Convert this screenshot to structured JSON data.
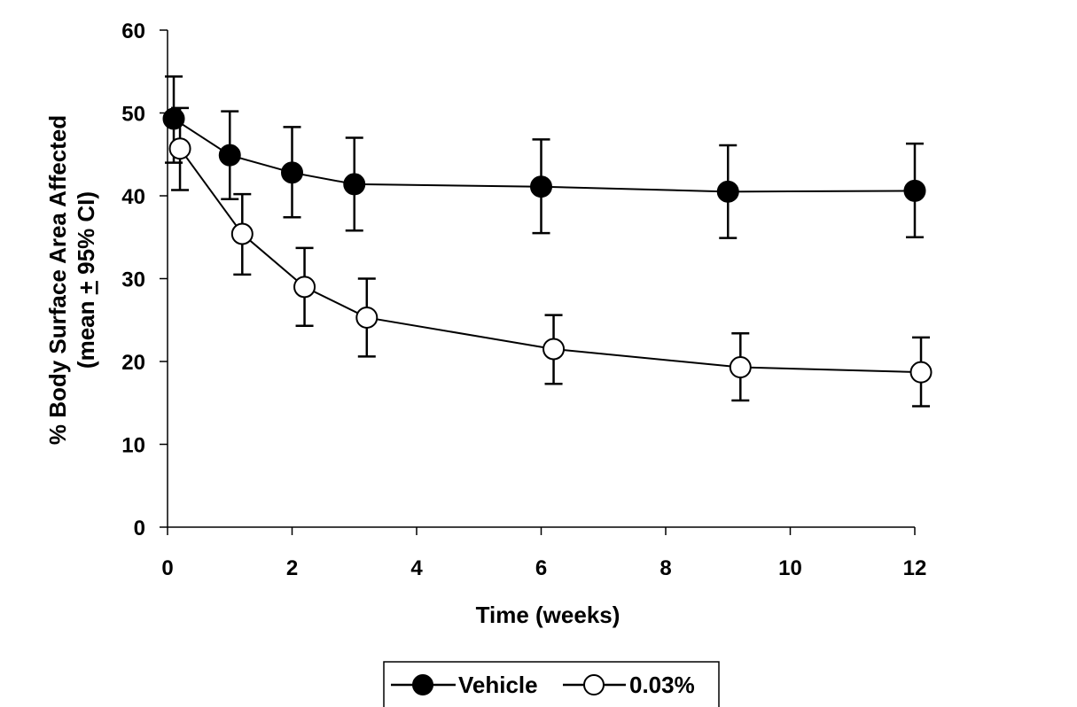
{
  "chart_data": {
    "type": "line",
    "title": "",
    "xlabel": "Time (weeks)",
    "ylabel": "% Body Surface Area Affected",
    "ylabel_line2_prefix": "(mean ",
    "ylabel_pm": "+",
    "ylabel_line2_suffix": " 95% CI)",
    "xlim": [
      0,
      12
    ],
    "ylim": [
      0,
      60
    ],
    "xticks": [
      0,
      2,
      4,
      6,
      8,
      10,
      12
    ],
    "yticks": [
      0,
      10,
      20,
      30,
      40,
      50,
      60
    ],
    "grid": false,
    "legend_position": "bottom-center",
    "series": [
      {
        "name": "Vehicle",
        "marker": "filled-circle",
        "x": [
          0.1,
          1,
          2,
          3,
          6,
          9,
          12
        ],
        "y": [
          49.3,
          44.9,
          42.8,
          41.4,
          41.1,
          40.5,
          40.6
        ],
        "ci_upper": [
          54.4,
          50.2,
          48.3,
          47.0,
          46.8,
          46.1,
          46.3
        ],
        "ci_lower": [
          44.0,
          39.6,
          37.4,
          35.8,
          35.5,
          34.9,
          35.0
        ]
      },
      {
        "name": "0.03%",
        "marker": "open-circle",
        "x": [
          0.2,
          1.2,
          2.2,
          3.2,
          6.2,
          9.2,
          12.1
        ],
        "y": [
          45.7,
          35.4,
          29.0,
          25.3,
          21.5,
          19.3,
          18.7
        ],
        "ci_upper": [
          50.6,
          40.2,
          33.7,
          30.0,
          25.6,
          23.4,
          22.9
        ],
        "ci_lower": [
          40.7,
          30.5,
          24.3,
          20.6,
          17.3,
          15.3,
          14.6
        ]
      }
    ]
  },
  "legend": {
    "items": [
      "Vehicle",
      "0.03%"
    ]
  }
}
